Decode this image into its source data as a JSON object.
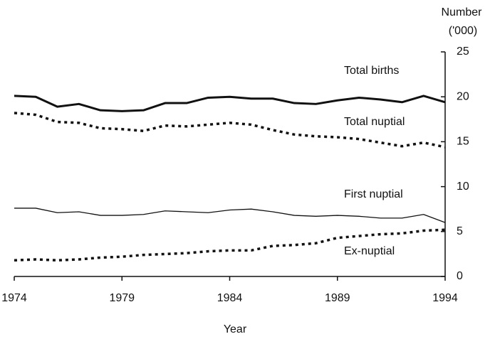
{
  "chart_data": {
    "type": "line",
    "y_label": [
      "Number",
      "('000)"
    ],
    "x_label": "Year",
    "x": [
      1974,
      1975,
      1976,
      1977,
      1978,
      1979,
      1980,
      1981,
      1982,
      1983,
      1984,
      1985,
      1986,
      1987,
      1988,
      1989,
      1990,
      1991,
      1992,
      1993,
      1994
    ],
    "series": [
      {
        "name": "Total births",
        "color": "#111111",
        "style": "thick",
        "values": [
          20.1,
          20.0,
          18.9,
          19.2,
          18.5,
          18.4,
          18.5,
          19.3,
          19.3,
          19.9,
          20.0,
          19.8,
          19.8,
          19.3,
          19.2,
          19.6,
          19.9,
          19.7,
          19.4,
          20.1,
          19.4
        ]
      },
      {
        "name": "Total nuptial",
        "color": "#111111",
        "style": "dotted",
        "values": [
          18.2,
          18.0,
          17.2,
          17.1,
          16.5,
          16.4,
          16.2,
          16.8,
          16.7,
          16.9,
          17.1,
          16.9,
          16.3,
          15.8,
          15.6,
          15.5,
          15.3,
          14.9,
          14.5,
          14.9,
          14.4
        ]
      },
      {
        "name": "First nuptial",
        "color": "#111111",
        "style": "thin",
        "values": [
          7.6,
          7.6,
          7.1,
          7.2,
          6.8,
          6.8,
          6.9,
          7.3,
          7.2,
          7.1,
          7.4,
          7.5,
          7.2,
          6.8,
          6.7,
          6.8,
          6.7,
          6.5,
          6.5,
          6.9,
          6.0
        ]
      },
      {
        "name": "Ex-nuptial",
        "color": "#111111",
        "style": "dotted",
        "values": [
          1.8,
          1.9,
          1.8,
          1.9,
          2.1,
          2.2,
          2.4,
          2.5,
          2.6,
          2.8,
          2.9,
          2.9,
          3.4,
          3.5,
          3.7,
          4.3,
          4.5,
          4.7,
          4.8,
          5.1,
          5.2
        ]
      }
    ],
    "xlim": [
      1974,
      1994
    ],
    "xticks": [
      1974,
      1979,
      1984,
      1989,
      1994
    ],
    "ylim": [
      0,
      25
    ],
    "yticks": [
      0,
      5,
      10,
      15,
      20,
      25
    ],
    "y_axis_side": "right"
  }
}
